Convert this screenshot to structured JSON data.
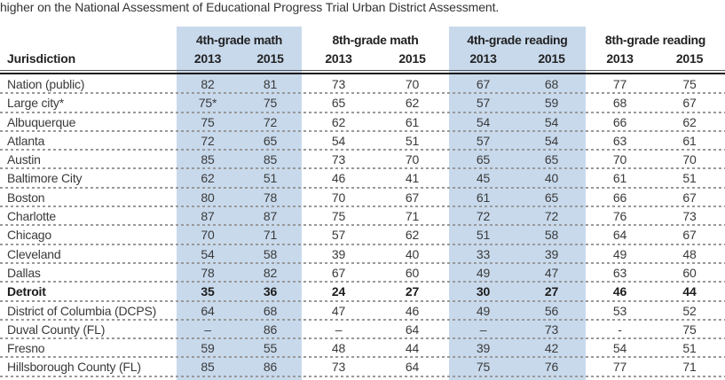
{
  "caption": "higher on the National Assessment of Educational Progress Trial Urban District Assessment.",
  "colors": {
    "highlight_band": "#c8d9ec",
    "body_text": "#3a3a3a",
    "header_text": "#222222",
    "rule": "#1a1a1a",
    "row_divider": "#999999"
  },
  "chart_data": {
    "type": "table",
    "caption": "higher on the National Assessment of Educational Progress Trial Urban District Assessment.",
    "row_header": "Jurisdiction",
    "column_groups": [
      {
        "label": "4th-grade math",
        "highlighted": true,
        "years": [
          "2013",
          "2015"
        ]
      },
      {
        "label": "8th-grade math",
        "highlighted": false,
        "years": [
          "2013",
          "2015"
        ]
      },
      {
        "label": "4th-grade reading",
        "highlighted": true,
        "years": [
          "2013",
          "2015"
        ]
      },
      {
        "label": "8th-grade reading",
        "highlighted": false,
        "years": [
          "2013",
          "2015"
        ]
      }
    ],
    "rows": [
      {
        "jurisdiction": "Nation (public)",
        "bold": false,
        "values": [
          "82",
          "81",
          "73",
          "70",
          "67",
          "68",
          "77",
          "75"
        ]
      },
      {
        "jurisdiction": "Large city*",
        "bold": false,
        "values": [
          "75*",
          "75",
          "65",
          "62",
          "57",
          "59",
          "68",
          "67"
        ]
      },
      {
        "jurisdiction": "Albuquerque",
        "bold": false,
        "values": [
          "75",
          "72",
          "62",
          "61",
          "54",
          "54",
          "66",
          "62"
        ]
      },
      {
        "jurisdiction": "Atlanta",
        "bold": false,
        "values": [
          "72",
          "65",
          "54",
          "51",
          "57",
          "54",
          "63",
          "61"
        ]
      },
      {
        "jurisdiction": "Austin",
        "bold": false,
        "values": [
          "85",
          "85",
          "73",
          "70",
          "65",
          "65",
          "70",
          "70"
        ]
      },
      {
        "jurisdiction": "Baltimore City",
        "bold": false,
        "values": [
          "62",
          "51",
          "46",
          "41",
          "45",
          "40",
          "61",
          "51"
        ]
      },
      {
        "jurisdiction": "Boston",
        "bold": false,
        "values": [
          "80",
          "78",
          "70",
          "67",
          "61",
          "65",
          "66",
          "67"
        ]
      },
      {
        "jurisdiction": "Charlotte",
        "bold": false,
        "values": [
          "87",
          "87",
          "75",
          "71",
          "72",
          "72",
          "76",
          "73"
        ]
      },
      {
        "jurisdiction": "Chicago",
        "bold": false,
        "values": [
          "70",
          "71",
          "57",
          "62",
          "51",
          "58",
          "64",
          "67"
        ]
      },
      {
        "jurisdiction": "Cleveland",
        "bold": false,
        "values": [
          "54",
          "58",
          "39",
          "40",
          "33",
          "39",
          "49",
          "48"
        ]
      },
      {
        "jurisdiction": "Dallas",
        "bold": false,
        "values": [
          "78",
          "82",
          "67",
          "60",
          "49",
          "47",
          "63",
          "60"
        ]
      },
      {
        "jurisdiction": "Detroit",
        "bold": true,
        "values": [
          "35",
          "36",
          "24",
          "27",
          "30",
          "27",
          "46",
          "44"
        ]
      },
      {
        "jurisdiction": "District of Columbia (DCPS)",
        "bold": false,
        "values": [
          "64",
          "68",
          "47",
          "46",
          "49",
          "56",
          "53",
          "52"
        ]
      },
      {
        "jurisdiction": "Duval County (FL)",
        "bold": false,
        "values": [
          "–",
          "86",
          "–",
          "64",
          "–",
          "73",
          "-",
          "75"
        ]
      },
      {
        "jurisdiction": "Fresno",
        "bold": false,
        "values": [
          "59",
          "55",
          "48",
          "44",
          "39",
          "42",
          "54",
          "51"
        ]
      },
      {
        "jurisdiction": "Hillsborough County (FL)",
        "bold": false,
        "values": [
          "85",
          "86",
          "73",
          "64",
          "75",
          "76",
          "77",
          "71"
        ]
      }
    ]
  }
}
